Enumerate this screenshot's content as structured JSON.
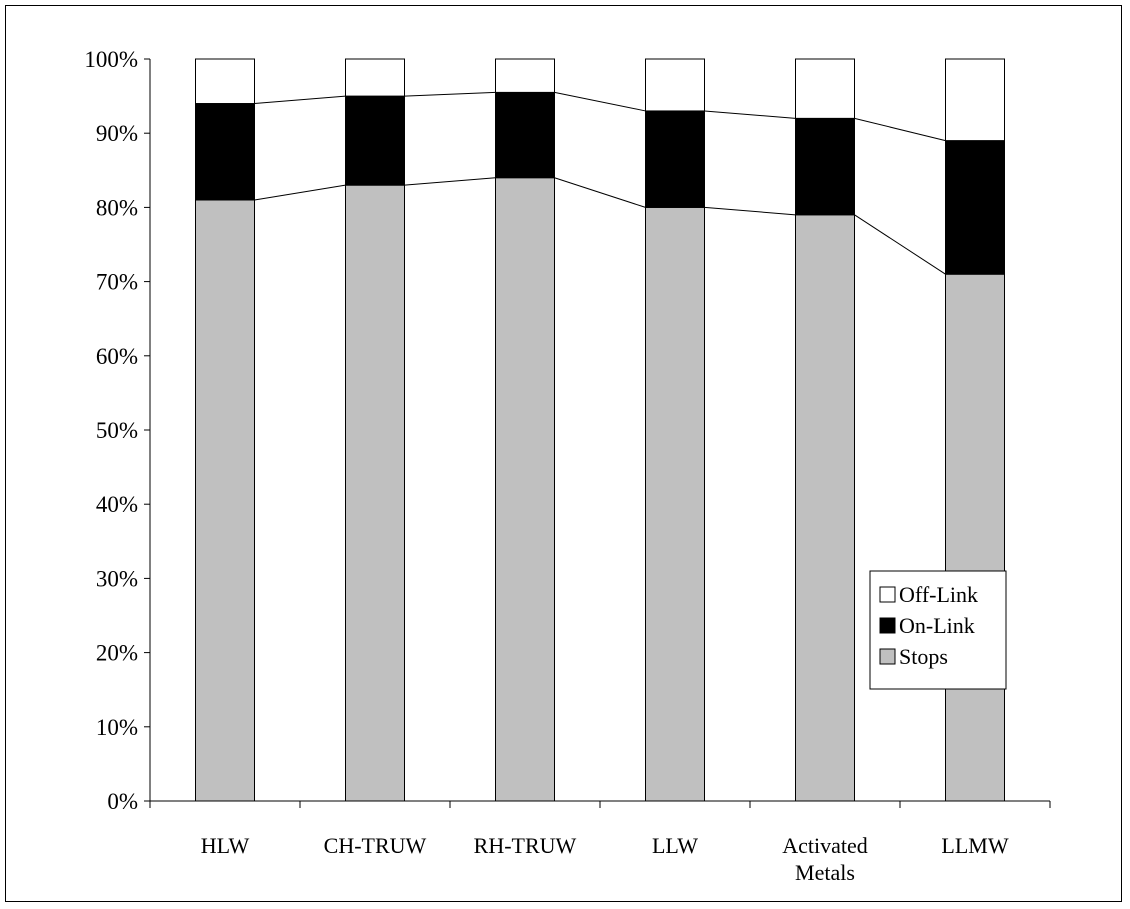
{
  "chart_data": {
    "type": "bar",
    "stacked": true,
    "percent_axis": true,
    "categories": [
      [
        "HLW"
      ],
      [
        "CH-TRUW"
      ],
      [
        "RH-TRUW"
      ],
      [
        "LLW"
      ],
      [
        "Activated",
        "Metals"
      ],
      [
        "LLMW"
      ]
    ],
    "series": [
      {
        "name": "Stops",
        "color": "#c0c0c0",
        "values": [
          81,
          83,
          84,
          80,
          79,
          71
        ]
      },
      {
        "name": "On-Link",
        "color": "#000000",
        "values": [
          13,
          12,
          11.5,
          13,
          13,
          18
        ]
      },
      {
        "name": "Off-Link",
        "color": "#ffffff",
        "values": [
          6,
          5,
          4.5,
          7,
          8,
          11
        ]
      }
    ],
    "ylim": [
      0,
      100
    ],
    "yticks": [
      "0%",
      "10%",
      "20%",
      "30%",
      "40%",
      "50%",
      "60%",
      "70%",
      "80%",
      "90%",
      "100%"
    ],
    "legend_order": [
      "Off-Link",
      "On-Link",
      "Stops"
    ],
    "legend_position": "lower-right",
    "series_lines": true,
    "grid": false,
    "title": "",
    "xlabel": "",
    "ylabel": ""
  }
}
